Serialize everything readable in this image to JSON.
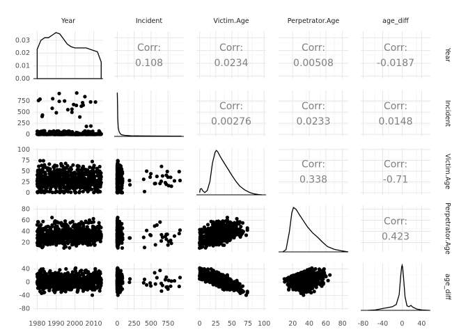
{
  "chart_data": {
    "type": "scatter-matrix",
    "variables": [
      "Year",
      "Incident",
      "Victim.Age",
      "Perpetrator.Age",
      "age_diff"
    ],
    "axis_ticks": {
      "Year": [
        1980,
        1990,
        2000,
        2010
      ],
      "Incident": [
        0,
        250,
        500,
        750
      ],
      "Victim.Age": [
        0,
        25,
        50,
        75,
        100
      ],
      "Perpetrator.Age": [
        20,
        40,
        60,
        80
      ],
      "age_diff": [
        -80,
        -40,
        0,
        40
      ]
    },
    "axis_ranges": {
      "Year": [
        1978,
        2015
      ],
      "Incident": [
        -45,
        985
      ],
      "Victim.Age": [
        -5,
        103
      ],
      "Perpetrator.Age": [
        3,
        87
      ],
      "age_diff": [
        -85,
        58
      ]
    },
    "diag_y_ticks": [
      0.0,
      0.01,
      0.02,
      0.03
    ],
    "diag_y_labels": [
      "0.00",
      "0.01",
      "0.02",
      "0.03"
    ],
    "diag_y_range": [
      0,
      0.037
    ],
    "year_density": [
      [
        1980,
        0.023
      ],
      [
        1982,
        0.03
      ],
      [
        1984,
        0.032
      ],
      [
        1986,
        0.032
      ],
      [
        1988,
        0.034
      ],
      [
        1990,
        0.036
      ],
      [
        1992,
        0.035
      ],
      [
        1994,
        0.031
      ],
      [
        1996,
        0.027
      ],
      [
        1998,
        0.025
      ],
      [
        2000,
        0.024
      ],
      [
        2002,
        0.024
      ],
      [
        2004,
        0.024
      ],
      [
        2006,
        0.024
      ],
      [
        2008,
        0.023
      ],
      [
        2010,
        0.022
      ],
      [
        2012,
        0.021
      ],
      [
        2014,
        0.013
      ]
    ],
    "incident_density": [
      [
        0,
        1.0
      ],
      [
        3,
        0.8
      ],
      [
        8,
        0.4
      ],
      [
        15,
        0.2
      ],
      [
        25,
        0.12
      ],
      [
        40,
        0.07
      ],
      [
        60,
        0.04
      ],
      [
        100,
        0.025
      ],
      [
        200,
        0.015
      ],
      [
        400,
        0.01
      ],
      [
        600,
        0.008
      ],
      [
        800,
        0.006
      ],
      [
        950,
        0.005
      ]
    ],
    "victim_age_density": [
      [
        0,
        0.05
      ],
      [
        1,
        0.13
      ],
      [
        3,
        0.14
      ],
      [
        5,
        0.09
      ],
      [
        8,
        0.05
      ],
      [
        12,
        0.1
      ],
      [
        16,
        0.3
      ],
      [
        20,
        0.72
      ],
      [
        24,
        0.96
      ],
      [
        26,
        1.0
      ],
      [
        28,
        0.97
      ],
      [
        32,
        0.86
      ],
      [
        38,
        0.72
      ],
      [
        44,
        0.58
      ],
      [
        50,
        0.44
      ],
      [
        56,
        0.31
      ],
      [
        62,
        0.2
      ],
      [
        70,
        0.11
      ],
      [
        78,
        0.05
      ],
      [
        85,
        0.02
      ],
      [
        92,
        0.005
      ],
      [
        97,
        0.0
      ]
    ],
    "perpetrator_age_density": [
      [
        8,
        0.0
      ],
      [
        12,
        0.05
      ],
      [
        16,
        0.45
      ],
      [
        19,
        0.88
      ],
      [
        21,
        1.0
      ],
      [
        24,
        0.96
      ],
      [
        28,
        0.84
      ],
      [
        33,
        0.7
      ],
      [
        38,
        0.56
      ],
      [
        44,
        0.43
      ],
      [
        50,
        0.33
      ],
      [
        56,
        0.22
      ],
      [
        62,
        0.12
      ],
      [
        70,
        0.06
      ],
      [
        80,
        0.02
      ],
      [
        87,
        0.0
      ]
    ],
    "age_diff_density": [
      [
        -70,
        0.0
      ],
      [
        -55,
        0.01
      ],
      [
        -40,
        0.04
      ],
      [
        -30,
        0.06
      ],
      [
        -20,
        0.08
      ],
      [
        -12,
        0.13
      ],
      [
        -6,
        0.35
      ],
      [
        -3,
        0.75
      ],
      [
        -1,
        0.96
      ],
      [
        0,
        1.0
      ],
      [
        1,
        0.96
      ],
      [
        3,
        0.72
      ],
      [
        6,
        0.3
      ],
      [
        10,
        0.1
      ],
      [
        14,
        0.08
      ],
      [
        18,
        0.11
      ],
      [
        22,
        0.07
      ],
      [
        30,
        0.03
      ],
      [
        40,
        0.01
      ],
      [
        55,
        0.0
      ]
    ],
    "correlations": [
      {
        "row": 0,
        "col": 1,
        "label": "Corr:",
        "value": "0.108"
      },
      {
        "row": 0,
        "col": 2,
        "label": "Corr:",
        "value": "0.0234"
      },
      {
        "row": 0,
        "col": 3,
        "label": "Corr:",
        "value": "0.00508"
      },
      {
        "row": 0,
        "col": 4,
        "label": "Corr:",
        "value": "-0.0187"
      },
      {
        "row": 1,
        "col": 2,
        "label": "Corr:",
        "value": "0.00276"
      },
      {
        "row": 1,
        "col": 3,
        "label": "Corr:",
        "value": "0.0233"
      },
      {
        "row": 1,
        "col": 4,
        "label": "Corr:",
        "value": "0.0148"
      },
      {
        "row": 2,
        "col": 3,
        "label": "Corr:",
        "value": "0.338"
      },
      {
        "row": 2,
        "col": 4,
        "label": "Corr:",
        "value": "-0.71"
      },
      {
        "row": 3,
        "col": 4,
        "label": "Corr:",
        "value": "0.423"
      }
    ],
    "grid": true,
    "colors": {
      "points": "#000000",
      "line": "#000000",
      "grid": "#e6e6e6",
      "strip_text": "#1a1a1a",
      "tick_text": "#4d4d4d",
      "corr_text": "#7f7f7f"
    }
  }
}
